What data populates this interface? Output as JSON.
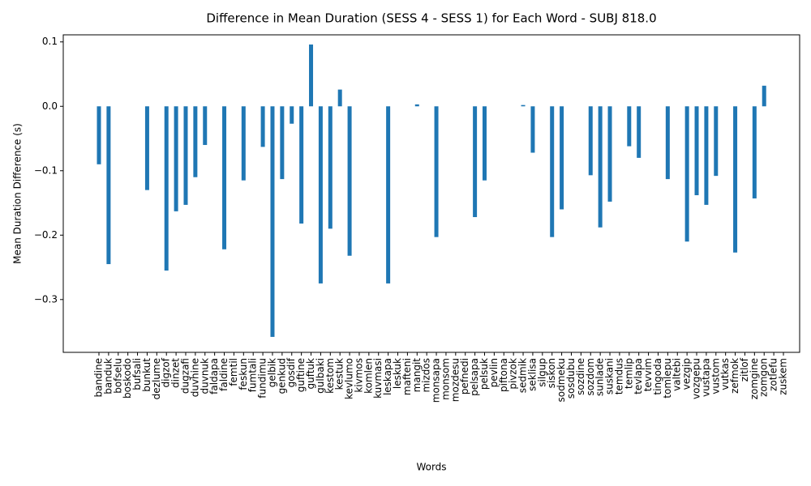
{
  "chart_data": {
    "type": "bar",
    "title": "Difference in Mean Duration (SESS 4 - SESS 1) for Each Word - SUBJ 818.0",
    "x_label": "Words",
    "y_label": "Mean Duration Difference (s)",
    "color": "#1f77b4",
    "categories": [
      "bandine",
      "banduk",
      "bofselu",
      "boskodo",
      "bufsali",
      "bunkut",
      "dezlume",
      "digzof",
      "dinzet",
      "dugzafi",
      "duvhine",
      "duvnuk",
      "faldapa",
      "faldine",
      "femtil",
      "feskun",
      "fumtali",
      "fundimu",
      "gelbik",
      "genkud",
      "gosdif",
      "guftine",
      "guftuk",
      "gulbaki",
      "kestom",
      "kestuk",
      "kevlumo",
      "kivmos",
      "komlen",
      "kuvmasi",
      "leskapa",
      "leskuk",
      "mafteni",
      "mangit",
      "mizdos",
      "monsapa",
      "monsom",
      "mozdesu",
      "pefnedi",
      "pelsapa",
      "pelsuk",
      "pevlin",
      "piftona",
      "pivzok",
      "sedmik",
      "seklisa",
      "silgup",
      "siskon",
      "sodmeku",
      "sosdubu",
      "sozdine",
      "sozdom",
      "sunlade",
      "suskani",
      "temdus",
      "temlip",
      "tevlapa",
      "tevvim",
      "tingoda",
      "tomlepu",
      "valtebi",
      "vezgip",
      "vozgepu",
      "vustapa",
      "vustom",
      "vutkas",
      "zefmok",
      "zitlof",
      "zomgine",
      "zomgon",
      "zotlefu",
      "zuskem"
    ],
    "values": [
      -0.09,
      -0.245,
      null,
      null,
      null,
      -0.13,
      null,
      -0.255,
      -0.163,
      -0.153,
      -0.11,
      -0.06,
      null,
      -0.222,
      null,
      -0.115,
      null,
      -0.063,
      -0.358,
      -0.113,
      -0.027,
      -0.182,
      0.096,
      -0.275,
      -0.19,
      0.026,
      -0.232,
      null,
      null,
      null,
      -0.275,
      null,
      null,
      0.003,
      null,
      -0.203,
      null,
      null,
      null,
      -0.172,
      -0.115,
      null,
      null,
      null,
      0.002,
      -0.072,
      null,
      -0.203,
      -0.16,
      null,
      null,
      -0.107,
      -0.188,
      -0.148,
      null,
      -0.062,
      -0.08,
      null,
      null,
      -0.113,
      null,
      -0.21,
      -0.138,
      -0.153,
      -0.108,
      null,
      -0.227,
      null,
      -0.143,
      0.032,
      null,
      null
    ],
    "ylim": [
      -0.382,
      0.111
    ],
    "yticks": [
      {
        "value": -0.3,
        "label": "−0.3"
      },
      {
        "value": -0.2,
        "label": "−0.2"
      },
      {
        "value": -0.1,
        "label": "−0.1"
      },
      {
        "value": 0,
        "label": "0.0"
      },
      {
        "value": 0.1,
        "label": "0.1"
      }
    ]
  }
}
